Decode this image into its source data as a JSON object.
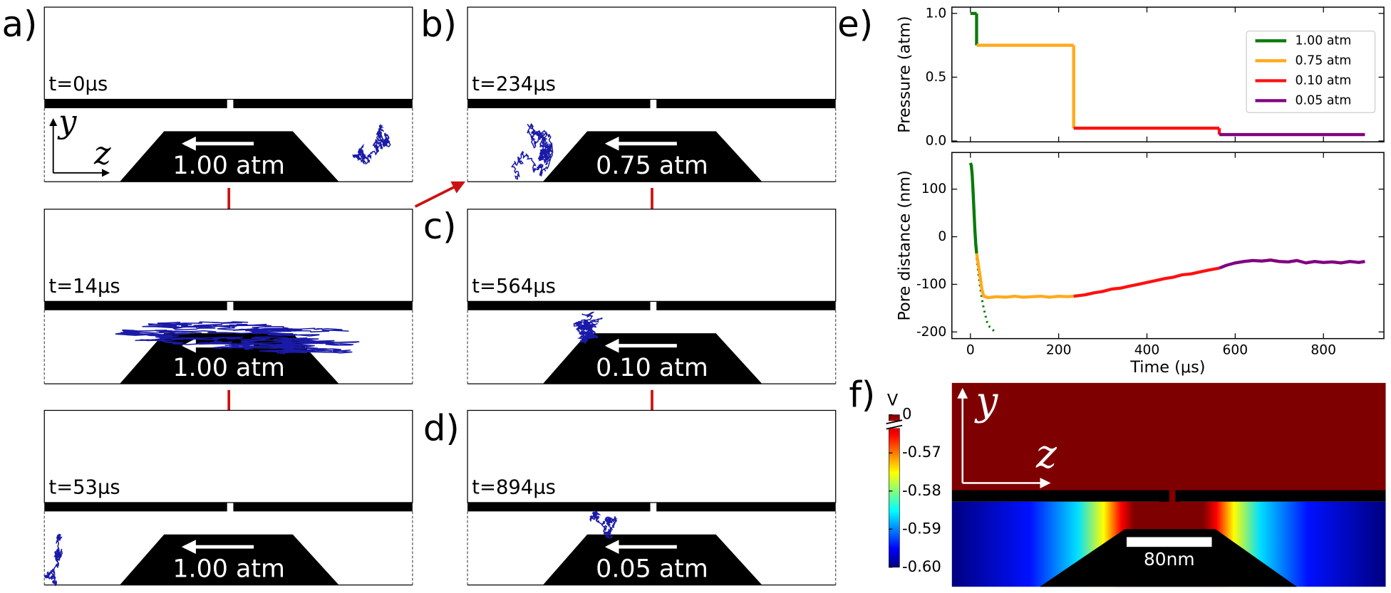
{
  "panel_labels": [
    "a)",
    "b)",
    "c)",
    "d)",
    "e)",
    "f)"
  ],
  "snapshots": [
    {
      "time": "t=0μs",
      "pressure": "1.00 atm"
    },
    {
      "time": "t=14μs",
      "pressure": "1.00 atm"
    },
    {
      "time": "t=53μs",
      "pressure": "1.00 atm"
    },
    {
      "time": "t=234μs",
      "pressure": "0.75 atm"
    },
    {
      "time": "t=564μs",
      "pressure": "0.10 atm"
    },
    {
      "time": "t=894μs",
      "pressure": "0.05 atm"
    }
  ],
  "axis_symbols": {
    "vertical": "y",
    "horizontal": "z"
  },
  "chart_data": [
    {
      "type": "line",
      "ylabel": "Pressure (atm)",
      "xlim": [
        -42,
        937
      ],
      "ylim": [
        -0.007,
        1.049
      ],
      "yticks": [
        {
          "value": 0,
          "label": "0.0"
        },
        0.5,
        {
          "value": 1,
          "label": "1.0"
        }
      ],
      "legend": "upper right",
      "series": [
        {
          "name": "1.00 atm",
          "color": "#0a7a0a",
          "x": [
            0,
            14
          ],
          "values": [
            1.0,
            1.0
          ]
        },
        {
          "name": "0.75 atm",
          "color": "#ffaa1c",
          "x": [
            14,
            234
          ],
          "values": [
            0.75,
            0.75
          ]
        },
        {
          "name": "0.10 atm",
          "color": "#ff1010",
          "x": [
            234,
            564
          ],
          "values": [
            0.1,
            0.1
          ]
        },
        {
          "name": "0.05 atm",
          "color": "#800080",
          "x": [
            564,
            894
          ],
          "values": [
            0.05,
            0.05
          ]
        }
      ]
    },
    {
      "type": "line",
      "ylabel": "Pore distance (nm)",
      "xlabel": "Time (μs)",
      "xlim": [
        -42,
        937
      ],
      "ylim": [
        -214,
        177
      ],
      "xticks": [
        0,
        200,
        400,
        600,
        800
      ],
      "yticks": [
        -200,
        -100,
        0,
        100
      ],
      "series": [
        {
          "name": "1.00 atm",
          "color": "#0a7a0a",
          "x": [
            0,
            2,
            4,
            6,
            8,
            10,
            12,
            14
          ],
          "values": [
            155,
            150,
            130,
            95,
            55,
            15,
            -15,
            -35
          ]
        },
        {
          "name": "0.75 atm",
          "color": "#ffaa1c",
          "x": [
            14,
            20,
            26,
            30,
            40,
            60,
            80,
            100,
            120,
            140,
            160,
            180,
            200,
            220,
            234
          ],
          "values": [
            -35,
            -70,
            -110,
            -125,
            -128,
            -126,
            -127,
            -125,
            -127,
            -126,
            -125,
            -127,
            -125,
            -126,
            -125
          ]
        },
        {
          "name": "0.10 atm",
          "color": "#ff1010",
          "x": [
            234,
            260,
            280,
            300,
            320,
            340,
            360,
            380,
            400,
            420,
            440,
            460,
            480,
            500,
            520,
            540,
            564
          ],
          "values": [
            -125,
            -122,
            -118,
            -115,
            -110,
            -108,
            -104,
            -100,
            -96,
            -92,
            -88,
            -85,
            -80,
            -78,
            -74,
            -70,
            -66
          ]
        },
        {
          "name": "0.05 atm",
          "color": "#800080",
          "x": [
            564,
            580,
            600,
            620,
            640,
            660,
            680,
            700,
            720,
            740,
            760,
            780,
            800,
            820,
            840,
            860,
            880,
            894
          ],
          "values": [
            -66,
            -60,
            -55,
            -52,
            -50,
            -51,
            -49,
            -52,
            -53,
            -50,
            -55,
            -52,
            -54,
            -53,
            -55,
            -52,
            -54,
            -52
          ]
        }
      ],
      "extrapolation": {
        "color": "#0a7a0a",
        "x": [
          14,
          18,
          22,
          26,
          30,
          34,
          38,
          44,
          50,
          56
        ],
        "values": [
          -45,
          -75,
          -105,
          -130,
          -150,
          -165,
          -180,
          -190,
          -195,
          -200
        ]
      }
    }
  ],
  "colorbar": {
    "label": "V",
    "ticks": [
      {
        "value": -0.6,
        "label": "-0.60"
      },
      -0.59,
      -0.58,
      -0.57,
      0
    ]
  },
  "scale_bar": "80nm"
}
